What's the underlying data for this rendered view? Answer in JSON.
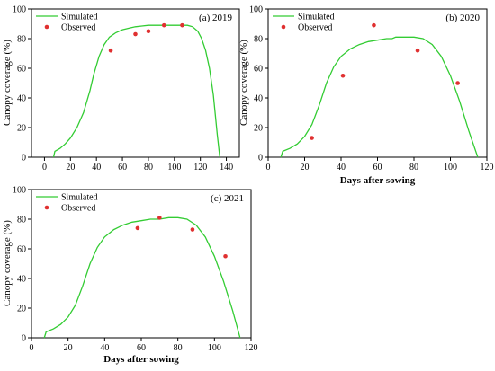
{
  "chart_data": [
    {
      "type": "line",
      "title": "(a)  2019",
      "xlabel": "",
      "ylabel": "Canopy coverage (%)",
      "xlim": [
        -10,
        150
      ],
      "ylim": [
        0,
        100
      ],
      "xticks": [
        0,
        20,
        40,
        60,
        80,
        100,
        120,
        140
      ],
      "yticks": [
        0,
        20,
        40,
        60,
        80,
        100
      ],
      "legend": {
        "position": "top-left",
        "simulated": "Simulated",
        "observed": "Observed"
      },
      "series": [
        {
          "name": "Simulated",
          "kind": "line",
          "color": "#33cc33",
          "x": [
            7,
            8,
            12,
            16,
            20,
            25,
            30,
            35,
            38,
            42,
            46,
            50,
            55,
            60,
            65,
            70,
            75,
            80,
            85,
            90,
            95,
            100,
            105,
            110,
            114,
            118,
            121,
            124,
            127,
            130,
            133,
            135
          ],
          "y": [
            0,
            4,
            6,
            9,
            13,
            20,
            30,
            45,
            56,
            68,
            76,
            81,
            84,
            86,
            87,
            88,
            88.5,
            89,
            89,
            89,
            89,
            89,
            89,
            89,
            88,
            85,
            80,
            72,
            60,
            42,
            15,
            0
          ]
        },
        {
          "name": "Observed",
          "kind": "scatter",
          "color": "#e03030",
          "x": [
            51,
            70,
            80,
            92,
            106
          ],
          "y": [
            72,
            83,
            85,
            89,
            89
          ]
        }
      ]
    },
    {
      "type": "line",
      "title": "(b)  2020",
      "xlabel": "Days after sowing",
      "ylabel": "Canopy coverage (%)",
      "xlim": [
        0,
        120
      ],
      "ylim": [
        0,
        100
      ],
      "xticks": [
        0,
        20,
        40,
        60,
        80,
        100,
        120
      ],
      "yticks": [
        0,
        20,
        40,
        60,
        80,
        100
      ],
      "legend": {
        "position": "top-left",
        "simulated": "Simulated",
        "observed": "Observed"
      },
      "series": [
        {
          "name": "Simulated",
          "kind": "line",
          "color": "#33cc33",
          "x": [
            7,
            8,
            12,
            16,
            20,
            24,
            28,
            32,
            36,
            40,
            45,
            50,
            55,
            60,
            65,
            68,
            70,
            75,
            80,
            85,
            90,
            95,
            100,
            105,
            110,
            115
          ],
          "y": [
            0,
            4,
            6,
            9,
            14,
            22,
            35,
            50,
            61,
            68,
            73,
            76,
            78,
            79,
            80,
            80,
            81,
            81,
            81,
            80,
            76,
            68,
            55,
            38,
            18,
            0
          ]
        },
        {
          "name": "Observed",
          "kind": "scatter",
          "color": "#e03030",
          "x": [
            24,
            41,
            58,
            82,
            104
          ],
          "y": [
            13,
            55,
            89,
            72,
            50
          ]
        }
      ]
    },
    {
      "type": "line",
      "title": "(c)  2021",
      "xlabel": "Days after sowing",
      "ylabel": "Canopy coverage (%)",
      "xlim": [
        0,
        120
      ],
      "ylim": [
        0,
        100
      ],
      "xticks": [
        0,
        20,
        40,
        60,
        80,
        100,
        120
      ],
      "yticks": [
        0,
        20,
        40,
        60,
        80,
        100
      ],
      "legend": {
        "position": "top-left",
        "simulated": "Simulated",
        "observed": "Observed"
      },
      "series": [
        {
          "name": "Simulated",
          "kind": "line",
          "color": "#33cc33",
          "x": [
            7,
            8,
            12,
            16,
            20,
            24,
            28,
            32,
            36,
            40,
            45,
            50,
            55,
            60,
            65,
            70,
            75,
            80,
            85,
            90,
            95,
            100,
            105,
            110,
            114
          ],
          "y": [
            0,
            4,
            6,
            9,
            14,
            22,
            35,
            50,
            61,
            68,
            73,
            76,
            78,
            79,
            80,
            80,
            81,
            81,
            80,
            76,
            68,
            55,
            38,
            18,
            0
          ]
        },
        {
          "name": "Observed",
          "kind": "scatter",
          "color": "#e03030",
          "x": [
            58,
            70,
            88,
            106
          ],
          "y": [
            74,
            81,
            73,
            55
          ]
        }
      ]
    }
  ]
}
